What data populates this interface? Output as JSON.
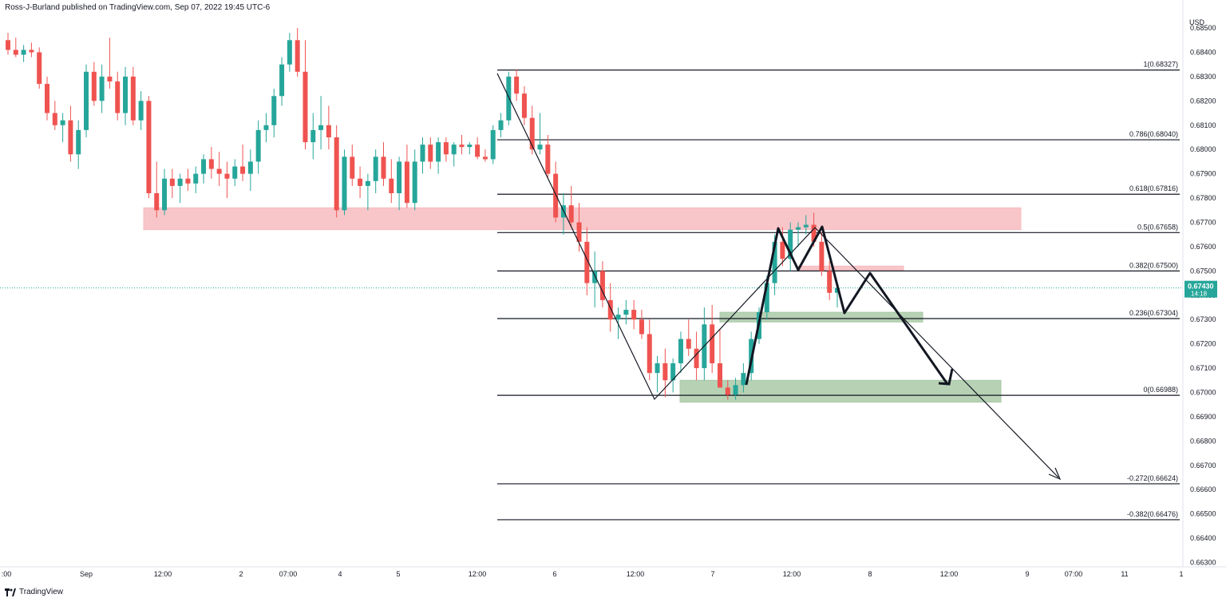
{
  "header": {
    "publisher": "Ross-J-Burland published on TradingView.com, Sep 07, 2022 19:45 UTC-6"
  },
  "footer": {
    "brand": "TradingView"
  },
  "colors": {
    "up": "#26a69a",
    "down": "#ef5350",
    "red_zone": "#f7bcc0",
    "green_zone": "#a9c9a7",
    "price_badge": "#26a69a"
  },
  "chart_data": {
    "type": "candlestick",
    "currency": "USD",
    "ylim": [
      0.663,
      0.6852
    ],
    "y_ticks": [
      "0.68500",
      "0.68400",
      "0.68300",
      "0.68200",
      "0.68100",
      "0.68000",
      "0.67900",
      "0.67800",
      "0.67700",
      "0.67600",
      "0.67500",
      "0.67400",
      "0.67300",
      "0.67200",
      "0.67100",
      "0.67000",
      "0.66900",
      "0.66800",
      "0.66700",
      "0.66600",
      "0.66500",
      "0.66400",
      "0.66300"
    ],
    "x_ticks": [
      ":00",
      "Sep",
      "12:00",
      "2",
      "07:00",
      "4",
      "5",
      "12:00",
      "6",
      "12:00",
      "7",
      "12:00",
      "8",
      "12:00",
      "9",
      "07:00",
      "11",
      "1"
    ],
    "current_price": {
      "value": "0.67430",
      "countdown": "14:18"
    },
    "fib_levels": [
      {
        "label": "1(0.68327)",
        "value": 0.68327
      },
      {
        "label": "0.786(0.68040)",
        "value": 0.6804
      },
      {
        "label": "0.618(0.67816)",
        "value": 0.67816
      },
      {
        "label": "0.5(0.67658)",
        "value": 0.67658
      },
      {
        "label": "0.382(0.67500)",
        "value": 0.675
      },
      {
        "label": "0.236(0.67304)",
        "value": 0.67304
      },
      {
        "label": "0(0.66988)",
        "value": 0.66988
      },
      {
        "label": "-0.272(0.66624)",
        "value": 0.66624
      },
      {
        "label": "-0.382(0.66476)",
        "value": 0.66476
      }
    ],
    "zones": [
      {
        "color": "red",
        "from": 0.6767,
        "to": 0.6776
      },
      {
        "color": "red",
        "from": 0.675,
        "to": 0.6752
      },
      {
        "color": "green",
        "from": 0.6729,
        "to": 0.6733
      },
      {
        "color": "green",
        "from": 0.6696,
        "to": 0.6705
      }
    ],
    "candles": [
      [
        0.6845,
        0.6848,
        0.6839,
        0.6841
      ],
      [
        0.6841,
        0.6846,
        0.6838,
        0.6839
      ],
      [
        0.6839,
        0.6843,
        0.6836,
        0.6841
      ],
      [
        0.6841,
        0.6844,
        0.6838,
        0.684
      ],
      [
        0.684,
        0.6842,
        0.6825,
        0.6827
      ],
      [
        0.6827,
        0.683,
        0.6812,
        0.6815
      ],
      [
        0.6815,
        0.682,
        0.6808,
        0.681
      ],
      [
        0.681,
        0.6815,
        0.6803,
        0.6812
      ],
      [
        0.6812,
        0.6818,
        0.6795,
        0.6798
      ],
      [
        0.6798,
        0.6812,
        0.6792,
        0.6808
      ],
      [
        0.6808,
        0.6835,
        0.6805,
        0.6832
      ],
      [
        0.6832,
        0.6836,
        0.6818,
        0.682
      ],
      [
        0.682,
        0.6835,
        0.6815,
        0.683
      ],
      [
        0.683,
        0.6846,
        0.6825,
        0.6828
      ],
      [
        0.6828,
        0.6832,
        0.6812,
        0.6815
      ],
      [
        0.6815,
        0.6834,
        0.681,
        0.683
      ],
      [
        0.683,
        0.6834,
        0.681,
        0.6812
      ],
      [
        0.6812,
        0.6824,
        0.6808,
        0.682
      ],
      [
        0.682,
        0.6822,
        0.678,
        0.6782
      ],
      [
        0.6782,
        0.6795,
        0.6772,
        0.6775
      ],
      [
        0.6775,
        0.6792,
        0.6773,
        0.6788
      ],
      [
        0.6788,
        0.6792,
        0.678,
        0.6785
      ],
      [
        0.6785,
        0.679,
        0.6778,
        0.6788
      ],
      [
        0.6788,
        0.6792,
        0.6783,
        0.6786
      ],
      [
        0.6786,
        0.6793,
        0.6782,
        0.679
      ],
      [
        0.679,
        0.6798,
        0.6786,
        0.6796
      ],
      [
        0.6796,
        0.6801,
        0.6788,
        0.6792
      ],
      [
        0.6792,
        0.6799,
        0.6785,
        0.679
      ],
      [
        0.679,
        0.6795,
        0.678,
        0.6788
      ],
      [
        0.6788,
        0.6796,
        0.6785,
        0.6793
      ],
      [
        0.6793,
        0.6802,
        0.6787,
        0.679
      ],
      [
        0.679,
        0.68,
        0.6783,
        0.6795
      ],
      [
        0.6795,
        0.6812,
        0.679,
        0.6808
      ],
      [
        0.6808,
        0.6815,
        0.6803,
        0.681
      ],
      [
        0.681,
        0.6825,
        0.6805,
        0.6822
      ],
      [
        0.6822,
        0.6838,
        0.6818,
        0.6835
      ],
      [
        0.6835,
        0.6848,
        0.6832,
        0.6845
      ],
      [
        0.6845,
        0.685,
        0.683,
        0.6832
      ],
      [
        0.6832,
        0.6845,
        0.68,
        0.6803
      ],
      [
        0.6803,
        0.6815,
        0.6796,
        0.6808
      ],
      [
        0.6808,
        0.6822,
        0.68,
        0.681
      ],
      [
        0.681,
        0.6818,
        0.68,
        0.6805
      ],
      [
        0.6805,
        0.681,
        0.6772,
        0.6775
      ],
      [
        0.6775,
        0.68,
        0.6773,
        0.6797
      ],
      [
        0.6797,
        0.6802,
        0.6785,
        0.6788
      ],
      [
        0.6788,
        0.6793,
        0.678,
        0.6785
      ],
      [
        0.6785,
        0.679,
        0.6775,
        0.6787
      ],
      [
        0.6787,
        0.68,
        0.6782,
        0.6797
      ],
      [
        0.6797,
        0.6803,
        0.6785,
        0.6788
      ],
      [
        0.6788,
        0.6796,
        0.6778,
        0.6782
      ],
      [
        0.6782,
        0.6797,
        0.6775,
        0.6795
      ],
      [
        0.6795,
        0.6802,
        0.6776,
        0.6778
      ],
      [
        0.6778,
        0.68,
        0.6775,
        0.6795
      ],
      [
        0.6795,
        0.6805,
        0.679,
        0.6802
      ],
      [
        0.6802,
        0.6805,
        0.6792,
        0.6795
      ],
      [
        0.6795,
        0.6805,
        0.679,
        0.6803
      ],
      [
        0.6803,
        0.6805,
        0.6795,
        0.6798
      ],
      [
        0.6798,
        0.6803,
        0.6793,
        0.6802
      ],
      [
        0.6802,
        0.6806,
        0.6798,
        0.6801
      ],
      [
        0.6801,
        0.6803,
        0.6798,
        0.6802
      ],
      [
        0.6802,
        0.6805,
        0.6796,
        0.6797
      ],
      [
        0.6797,
        0.68,
        0.6795,
        0.6796
      ],
      [
        0.6796,
        0.681,
        0.6794,
        0.6808
      ],
      [
        0.6808,
        0.6815,
        0.6805,
        0.6812
      ],
      [
        0.6812,
        0.6832,
        0.681,
        0.683
      ],
      [
        0.683,
        0.6833,
        0.682,
        0.6823
      ],
      [
        0.6823,
        0.6826,
        0.681,
        0.6813
      ],
      [
        0.6813,
        0.6818,
        0.6798,
        0.68
      ],
      [
        0.68,
        0.6815,
        0.6798,
        0.6802
      ],
      [
        0.6802,
        0.6806,
        0.6788,
        0.679
      ],
      [
        0.679,
        0.6795,
        0.677,
        0.6772
      ],
      [
        0.6772,
        0.6782,
        0.6765,
        0.6777
      ],
      [
        0.6777,
        0.6785,
        0.6768,
        0.677
      ],
      [
        0.677,
        0.6778,
        0.6758,
        0.6762
      ],
      [
        0.6762,
        0.6768,
        0.674,
        0.6745
      ],
      [
        0.6745,
        0.6758,
        0.6735,
        0.675
      ],
      [
        0.675,
        0.6754,
        0.6735,
        0.6738
      ],
      [
        0.6738,
        0.6745,
        0.6725,
        0.673
      ],
      [
        0.673,
        0.6735,
        0.6722,
        0.6732
      ],
      [
        0.6732,
        0.6738,
        0.6728,
        0.6734
      ],
      [
        0.6734,
        0.6738,
        0.6726,
        0.673
      ],
      [
        0.673,
        0.6734,
        0.6722,
        0.6724
      ],
      [
        0.6724,
        0.673,
        0.6705,
        0.6708
      ],
      [
        0.6708,
        0.6715,
        0.67,
        0.6712
      ],
      [
        0.6712,
        0.6718,
        0.6698,
        0.6705
      ],
      [
        0.6705,
        0.6714,
        0.67,
        0.6712
      ],
      [
        0.6712,
        0.6725,
        0.6708,
        0.6722
      ],
      [
        0.6722,
        0.673,
        0.6715,
        0.6718
      ],
      [
        0.6718,
        0.6725,
        0.6705,
        0.671
      ],
      [
        0.671,
        0.6735,
        0.6705,
        0.6728
      ],
      [
        0.6728,
        0.6736,
        0.6708,
        0.6712
      ],
      [
        0.6712,
        0.6726,
        0.6702,
        0.6702
      ],
      [
        0.6702,
        0.6705,
        0.6697,
        0.6699
      ],
      [
        0.6699,
        0.6706,
        0.6697,
        0.6703
      ],
      [
        0.6703,
        0.6712,
        0.67,
        0.6708
      ],
      [
        0.6708,
        0.6725,
        0.6705,
        0.6722
      ],
      [
        0.6722,
        0.6735,
        0.672,
        0.6733
      ],
      [
        0.6733,
        0.6748,
        0.673,
        0.6745
      ],
      [
        0.6745,
        0.6765,
        0.674,
        0.6762
      ],
      [
        0.6762,
        0.6768,
        0.6752,
        0.6755
      ],
      [
        0.6755,
        0.677,
        0.675,
        0.6767
      ],
      [
        0.6767,
        0.677,
        0.676,
        0.6768
      ],
      [
        0.6768,
        0.6773,
        0.6765,
        0.6769
      ],
      [
        0.6769,
        0.6774,
        0.676,
        0.6762
      ],
      [
        0.6762,
        0.6766,
        0.6748,
        0.675
      ],
      [
        0.675,
        0.6754,
        0.6738,
        0.6741
      ],
      [
        0.6741,
        0.6745,
        0.6735,
        0.6743
      ]
    ]
  }
}
